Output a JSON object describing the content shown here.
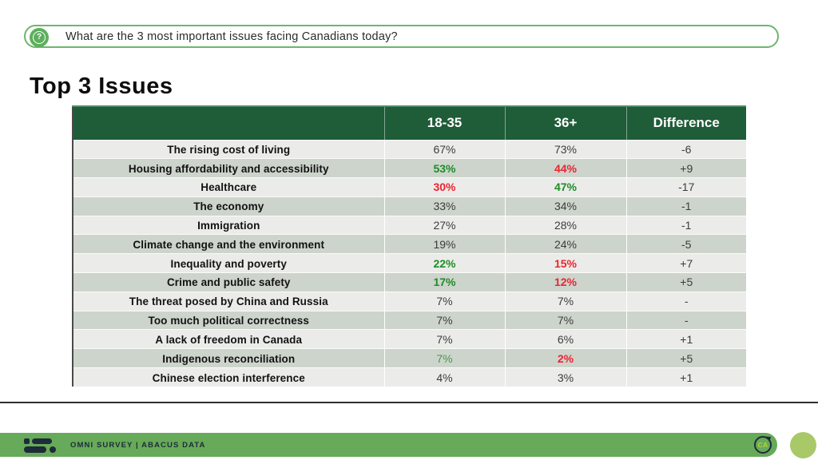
{
  "question_bar": {
    "icon": "question-bubble-icon",
    "text": "What are the 3 most important issues facing Canadians today?"
  },
  "title": "Top 3 Issues",
  "table": {
    "columns": [
      "",
      "18-35",
      "36+",
      "Difference"
    ],
    "rows": [
      {
        "label": "The rising cost of living",
        "v1": "67%",
        "v1_class": "",
        "v2": "73%",
        "v2_class": "",
        "diff": "-6"
      },
      {
        "label": "Housing affordability and accessibility",
        "v1": "53%",
        "v1_class": "pos",
        "v2": "44%",
        "v2_class": "neg",
        "diff": "+9"
      },
      {
        "label": "Healthcare",
        "v1": "30%",
        "v1_class": "neg",
        "v2": "47%",
        "v2_class": "pos",
        "diff": "-17"
      },
      {
        "label": "The economy",
        "v1": "33%",
        "v1_class": "",
        "v2": "34%",
        "v2_class": "",
        "diff": "-1"
      },
      {
        "label": "Immigration",
        "v1": "27%",
        "v1_class": "",
        "v2": "28%",
        "v2_class": "",
        "diff": "-1"
      },
      {
        "label": "Climate change and the environment",
        "v1": "19%",
        "v1_class": "",
        "v2": "24%",
        "v2_class": "",
        "diff": "-5"
      },
      {
        "label": "Inequality and poverty",
        "v1": "22%",
        "v1_class": "pos",
        "v2": "15%",
        "v2_class": "neg",
        "diff": "+7"
      },
      {
        "label": "Crime and public safety",
        "v1": "17%",
        "v1_class": "pos",
        "v2": "12%",
        "v2_class": "neg",
        "diff": "+5"
      },
      {
        "label": "The threat posed by China and Russia",
        "v1": "7%",
        "v1_class": "",
        "v2": "7%",
        "v2_class": "",
        "diff": "-"
      },
      {
        "label": "Too much political correctness",
        "v1": "7%",
        "v1_class": "",
        "v2": "7%",
        "v2_class": "",
        "diff": "-"
      },
      {
        "label": "A lack of freedom in Canada",
        "v1": "7%",
        "v1_class": "",
        "v2": "6%",
        "v2_class": "",
        "diff": "+1"
      },
      {
        "label": "Indigenous reconciliation",
        "v1": "7%",
        "v1_class": "pos-reg",
        "v2": "2%",
        "v2_class": "neg",
        "diff": "+5"
      },
      {
        "label": "Chinese election interference",
        "v1": "4%",
        "v1_class": "",
        "v2": "3%",
        "v2_class": "",
        "diff": "+1"
      }
    ]
  },
  "footer": {
    "logo": "abacus-data-logo",
    "text": "OMNI SURVEY  |  ABACUS DATA",
    "ca_badge": "CA"
  },
  "colors": {
    "header_green": "#1f5c38",
    "pill_border_green": "#6fb56f",
    "footer_bar_green": "#67aa59",
    "positive_green": "#1d8d27",
    "negative_red": "#ee2330",
    "row_light": "#ebece9",
    "row_dark": "#cdd4cc",
    "footer_navy": "#1e2b39",
    "right_circle_green": "#a9c868"
  },
  "chart_data": {
    "type": "table",
    "title": "Top 3 Issues",
    "question": "What are the 3 most important issues facing Canadians today?",
    "categories": [
      "The rising cost of living",
      "Housing affordability and accessibility",
      "Healthcare",
      "The economy",
      "Immigration",
      "Climate change and the environment",
      "Inequality and poverty",
      "Crime and public safety",
      "The threat posed by China and Russia",
      "Too much political correctness",
      "A lack of freedom in Canada",
      "Indigenous reconciliation",
      "Chinese election interference"
    ],
    "series": [
      {
        "name": "18-35",
        "values": [
          67,
          53,
          30,
          33,
          27,
          19,
          22,
          17,
          7,
          7,
          7,
          7,
          4
        ],
        "unit": "%"
      },
      {
        "name": "36+",
        "values": [
          73,
          44,
          47,
          34,
          28,
          24,
          15,
          12,
          7,
          7,
          6,
          2,
          3
        ],
        "unit": "%"
      },
      {
        "name": "Difference",
        "values": [
          -6,
          9,
          -17,
          -1,
          -1,
          -5,
          7,
          5,
          null,
          null,
          1,
          5,
          1
        ]
      }
    ]
  }
}
